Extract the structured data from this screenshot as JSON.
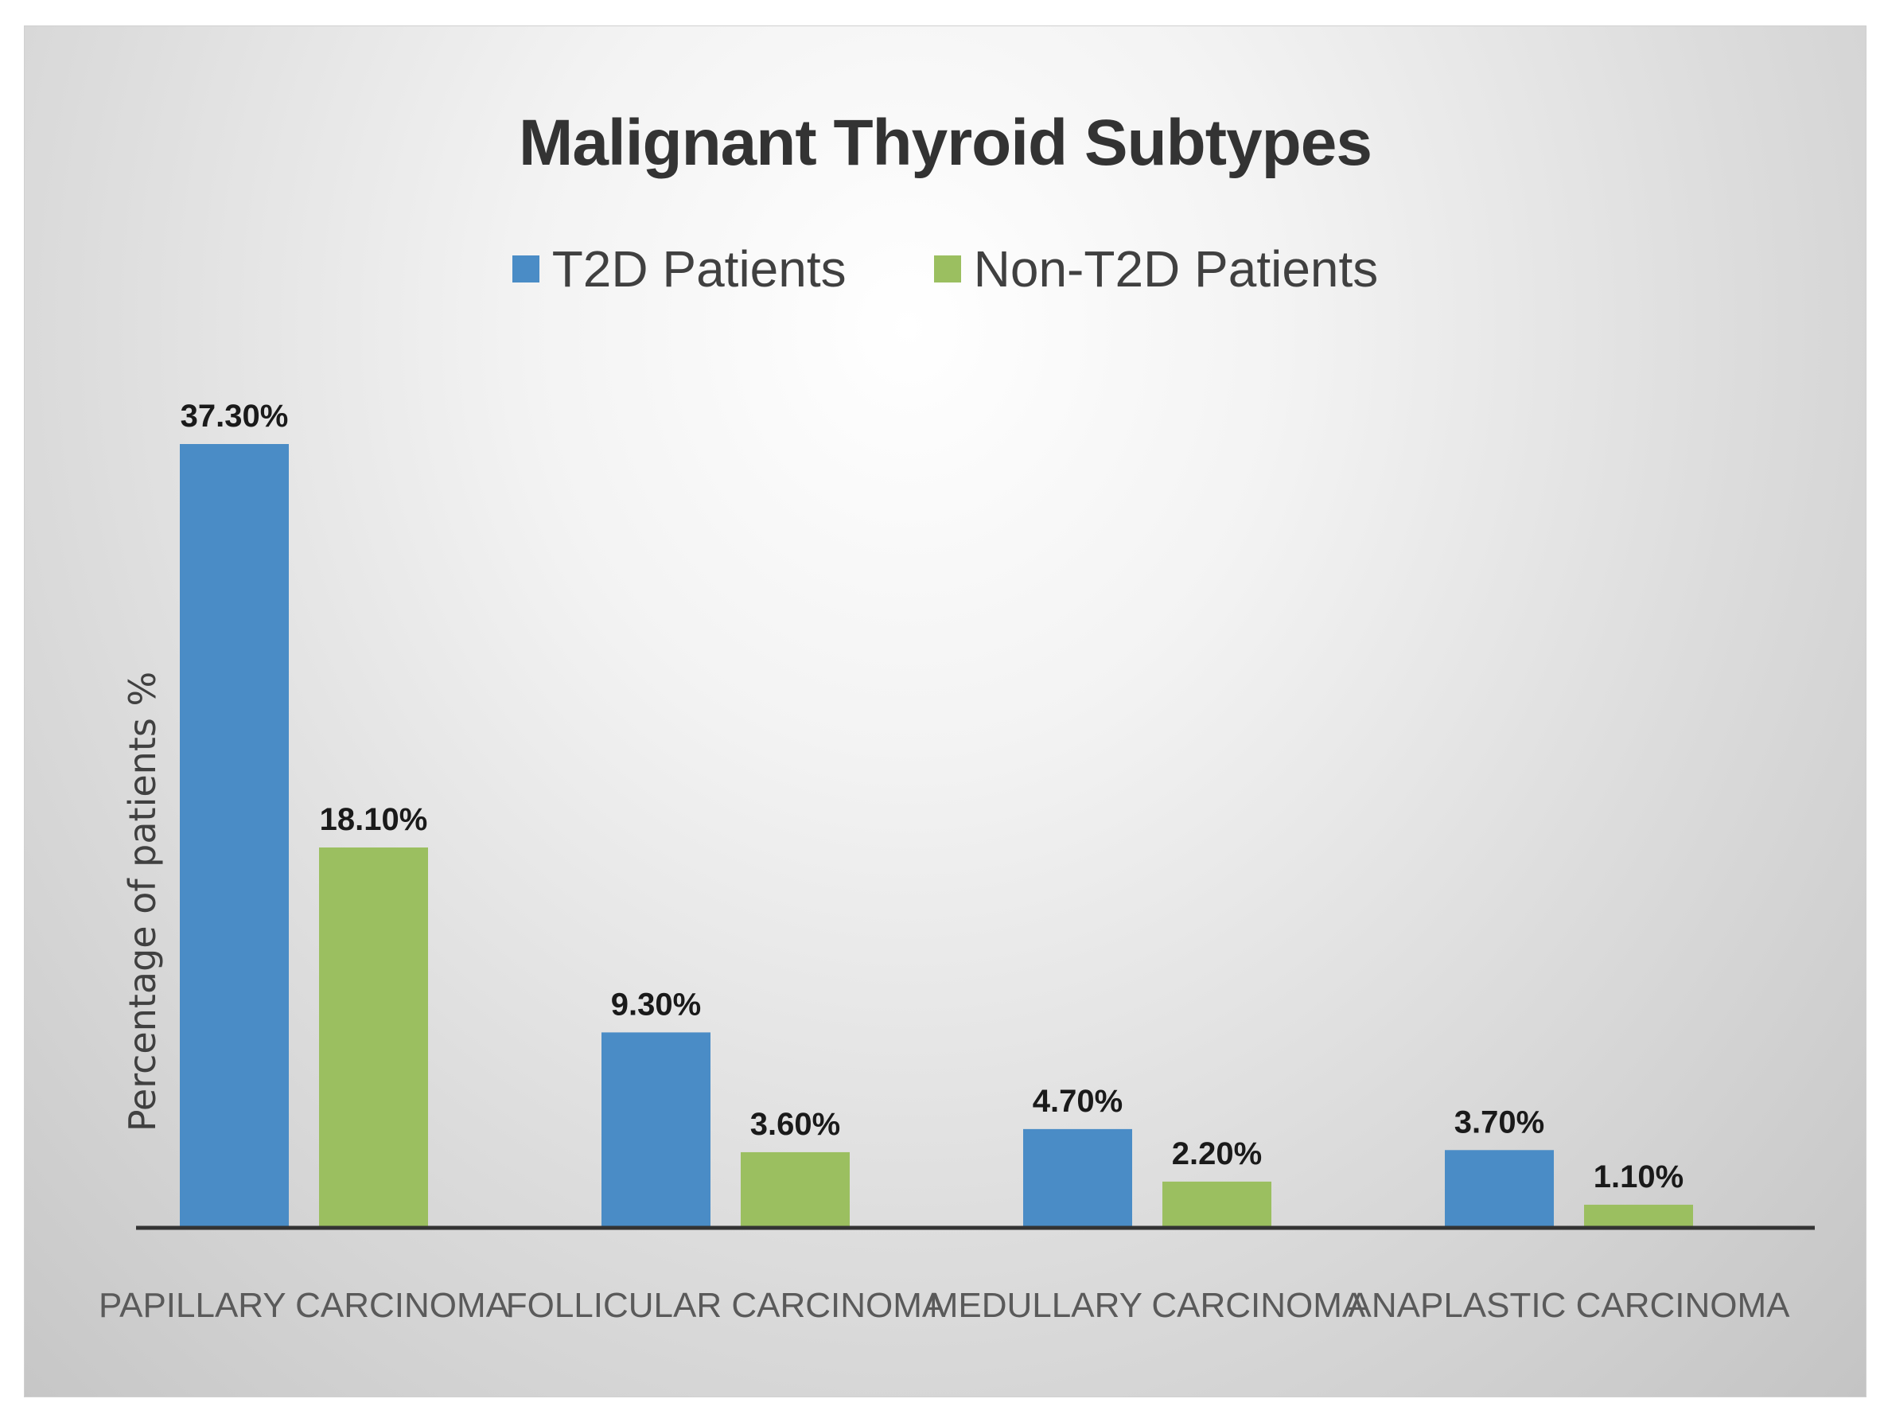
{
  "chart_data": {
    "type": "bar",
    "title": "Malignant Thyroid Subtypes",
    "xlabel": "",
    "ylabel": "Percentage of patients %",
    "categories": [
      "PAPILLARY CARCINOMA",
      "FOLLICULAR CARCINOMA",
      "MEDULLARY CARCINOMA",
      "ANAPLASTIC CARCINOMA"
    ],
    "series": [
      {
        "name": "T2D Patients",
        "color": "#4a8cc6",
        "values": [
          37.3,
          9.3,
          4.7,
          3.7
        ],
        "labels": [
          "37.30%",
          "9.30%",
          "4.70%",
          "3.70%"
        ]
      },
      {
        "name": "Non-T2D Patients",
        "color": "#9bbf60",
        "values": [
          18.1,
          3.6,
          2.2,
          1.1
        ],
        "labels": [
          "18.10%",
          "3.60%",
          "2.20%",
          "1.10%"
        ]
      }
    ],
    "ylim": [
      0,
      37.3
    ],
    "grid": false,
    "legend_position": "top-center"
  }
}
